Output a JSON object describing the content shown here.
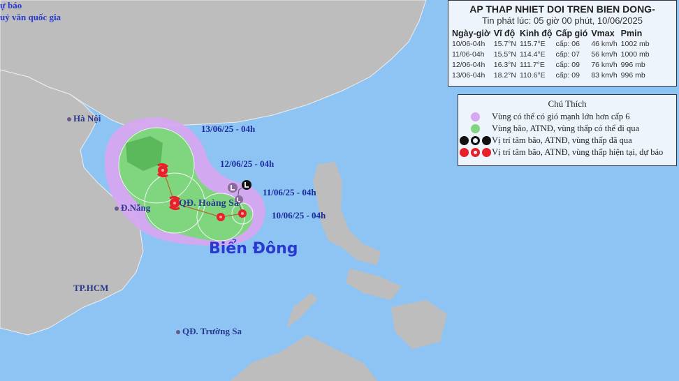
{
  "agency_text": [
    "ự báo",
    "uỷ văn quốc gia"
  ],
  "info": {
    "title": "AP THAP NHIET DOI TREN BIEN DONG-",
    "issued": "Tin phát lúc: 05 giờ 00 phút, 10/06/2025",
    "columns": [
      "Ngày-giờ",
      "Vĩ độ",
      "Kinh độ",
      "Cấp gió",
      "Vmax",
      "Pmin"
    ],
    "rows": [
      [
        "10/06-04h",
        "15.7°N",
        "115.7°E",
        "cấp: 06",
        "46 km/h",
        "1002 mb"
      ],
      [
        "11/06-04h",
        "15.5°N",
        "114.4°E",
        "cấp: 07",
        "56 km/h",
        "1000 mb"
      ],
      [
        "12/06-04h",
        "16.3°N",
        "111.7°E",
        "cấp: 09",
        "76 km/h",
        "996 mb"
      ],
      [
        "13/06-04h",
        "18.2°N",
        "110.6°E",
        "cấp: 09",
        "83 km/h",
        "996 mb"
      ]
    ]
  },
  "legend": {
    "title": "Chú Thích",
    "items": [
      {
        "label": "Vùng có thể có gió mạnh lớn hơn cấp 6",
        "color": "#d6a8f0"
      },
      {
        "label": "Vùng bão, ATNĐ, vùng thấp có thể đi qua",
        "color": "#7fd67f"
      },
      {
        "label": "Vị trí tâm bão, ATNĐ, vùng thấp đã qua",
        "color": "#111111"
      },
      {
        "label": "Vị trí tâm bão, ATNĐ, vùng thấp hiện tại, dự báo",
        "color": "#e8202a"
      }
    ]
  },
  "places": {
    "hanoi": "Hà Nội",
    "danang": "Đ.Nẵng",
    "hoangsa": "QĐ. Hoàng Sa",
    "biendong": "Biển Đông",
    "hcm": "TP.HCM",
    "truongsa": "QĐ. Trường Sa"
  },
  "forecast_labels": [
    "13/06/25 - 04h",
    "12/06/25 - 04h",
    "11/06/25 - 04h",
    "10/06/25 - 04h"
  ],
  "colors": {
    "ocean": "#8ec4f4",
    "land": "#bdbdbd",
    "wind_zone": "#d6a8f0",
    "track_zone": "#7fd67f",
    "current": "#e8202a"
  }
}
